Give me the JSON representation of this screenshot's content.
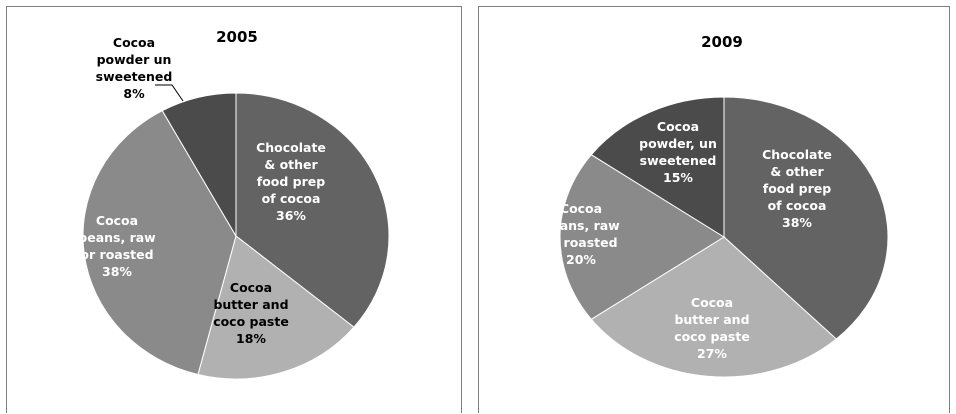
{
  "chart_data": [
    {
      "type": "pie",
      "title": "2005",
      "slices": [
        {
          "label": [
            "Chocolate",
            "& other",
            "food prep",
            "of cocoa"
          ],
          "pct_label": "36%",
          "value": 36,
          "color": "#636363"
        },
        {
          "label": [
            "Cocoa",
            "butter and",
            "coco paste"
          ],
          "pct_label": "18%",
          "value": 18,
          "color": "#b1b1b1"
        },
        {
          "label": [
            "Cocoa",
            "beans, raw",
            "or roasted"
          ],
          "pct_label": "38%",
          "value": 38,
          "color": "#8a8a8a"
        },
        {
          "label": [
            "Cocoa",
            "powder un",
            "sweetened"
          ],
          "pct_label": "8%",
          "value": 8,
          "color": "#4b4b4b"
        }
      ],
      "legend": "none"
    },
    {
      "type": "pie",
      "title": "2009",
      "slices": [
        {
          "label": [
            "Chocolate",
            "& other",
            "food prep",
            "of cocoa"
          ],
          "pct_label": "38%",
          "value": 38,
          "color": "#636363"
        },
        {
          "label": [
            "Cocoa",
            "butter and",
            "coco paste"
          ],
          "pct_label": "27%",
          "value": 27,
          "color": "#b1b1b1"
        },
        {
          "label": [
            "Cocoa",
            "beans, raw",
            "or roasted"
          ],
          "pct_label": "20%",
          "value": 20,
          "color": "#8a8a8a"
        },
        {
          "label": [
            "Cocoa",
            "powder, un",
            "sweetened"
          ],
          "pct_label": "15%",
          "value": 15,
          "color": "#4b4b4b"
        }
      ],
      "legend": "none"
    }
  ]
}
